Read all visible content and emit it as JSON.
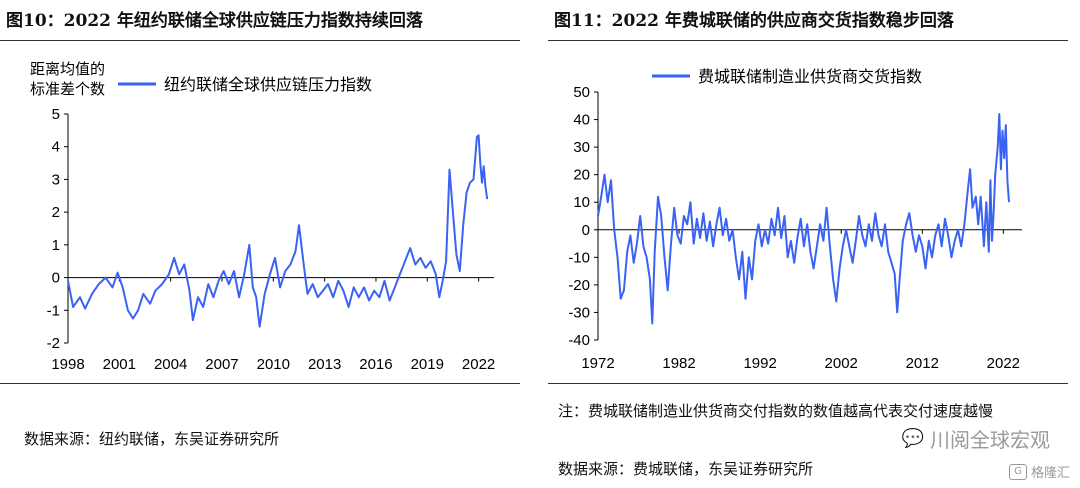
{
  "left": {
    "title": "图10：2022 年纽约联储全球供应链压力指数持续回落",
    "source": "数据来源：纽约联储，东吴证券研究所",
    "chart_data": {
      "type": "line",
      "ylabel": "距离均值的\n标准差个数",
      "legend": "纽约联储全球供应链压力指数",
      "ylim": [
        -2,
        5
      ],
      "yticks": [
        -2,
        -1,
        0,
        1,
        2,
        3,
        4,
        5
      ],
      "xlim": [
        1998,
        2022.9
      ],
      "xticks": [
        1998,
        2001,
        2004,
        2007,
        2010,
        2013,
        2016,
        2019,
        2022
      ],
      "series": [
        {
          "name": "纽约联储全球供应链压力指数",
          "color": "#3b63f3",
          "points": [
            [
              1998,
              -0.1
            ],
            [
              1998.3,
              -0.9
            ],
            [
              1998.7,
              -0.6
            ],
            [
              1999,
              -0.95
            ],
            [
              1999.4,
              -0.5
            ],
            [
              1999.8,
              -0.2
            ],
            [
              2000.2,
              0
            ],
            [
              2000.6,
              -0.3
            ],
            [
              2000.9,
              0.15
            ],
            [
              2001.2,
              -0.3
            ],
            [
              2001.5,
              -1.0
            ],
            [
              2001.8,
              -1.25
            ],
            [
              2002.1,
              -1.0
            ],
            [
              2002.4,
              -0.5
            ],
            [
              2002.8,
              -0.8
            ],
            [
              2003.1,
              -0.4
            ],
            [
              2003.5,
              -0.2
            ],
            [
              2003.9,
              0.1
            ],
            [
              2004.2,
              0.6
            ],
            [
              2004.5,
              0.1
            ],
            [
              2004.8,
              0.4
            ],
            [
              2005.1,
              -0.4
            ],
            [
              2005.3,
              -1.3
            ],
            [
              2005.6,
              -0.6
            ],
            [
              2005.9,
              -0.9
            ],
            [
              2006.2,
              -0.2
            ],
            [
              2006.5,
              -0.6
            ],
            [
              2006.8,
              -0.1
            ],
            [
              2007.1,
              0.2
            ],
            [
              2007.4,
              -0.2
            ],
            [
              2007.7,
              0.2
            ],
            [
              2008.0,
              -0.6
            ],
            [
              2008.3,
              0.1
            ],
            [
              2008.6,
              1.0
            ],
            [
              2008.8,
              -0.3
            ],
            [
              2009.0,
              -0.6
            ],
            [
              2009.2,
              -1.5
            ],
            [
              2009.5,
              -0.5
            ],
            [
              2009.8,
              0.1
            ],
            [
              2010.1,
              0.6
            ],
            [
              2010.4,
              -0.3
            ],
            [
              2010.7,
              0.2
            ],
            [
              2011.0,
              0.4
            ],
            [
              2011.3,
              0.8
            ],
            [
              2011.5,
              1.6
            ],
            [
              2011.8,
              0.3
            ],
            [
              2012.0,
              -0.5
            ],
            [
              2012.3,
              -0.2
            ],
            [
              2012.6,
              -0.6
            ],
            [
              2012.9,
              -0.4
            ],
            [
              2013.2,
              -0.2
            ],
            [
              2013.5,
              -0.6
            ],
            [
              2013.8,
              -0.1
            ],
            [
              2014.1,
              -0.4
            ],
            [
              2014.4,
              -0.9
            ],
            [
              2014.7,
              -0.3
            ],
            [
              2015.0,
              -0.6
            ],
            [
              2015.3,
              -0.3
            ],
            [
              2015.6,
              -0.7
            ],
            [
              2015.9,
              -0.4
            ],
            [
              2016.2,
              -0.6
            ],
            [
              2016.5,
              -0.1
            ],
            [
              2016.8,
              -0.7
            ],
            [
              2017.1,
              -0.3
            ],
            [
              2017.4,
              0.1
            ],
            [
              2017.7,
              0.5
            ],
            [
              2018.0,
              0.9
            ],
            [
              2018.3,
              0.4
            ],
            [
              2018.6,
              0.6
            ],
            [
              2018.9,
              0.3
            ],
            [
              2019.2,
              0.5
            ],
            [
              2019.5,
              0.1
            ],
            [
              2019.7,
              -0.6
            ],
            [
              2019.9,
              -0.1
            ],
            [
              2020.1,
              0.5
            ],
            [
              2020.3,
              3.3
            ],
            [
              2020.5,
              2.0
            ],
            [
              2020.7,
              0.7
            ],
            [
              2020.9,
              0.2
            ],
            [
              2021.1,
              1.6
            ],
            [
              2021.3,
              2.6
            ],
            [
              2021.5,
              2.9
            ],
            [
              2021.7,
              3.0
            ],
            [
              2021.9,
              4.3
            ],
            [
              2022.0,
              4.35
            ],
            [
              2022.1,
              3.5
            ],
            [
              2022.2,
              2.9
            ],
            [
              2022.3,
              3.4
            ],
            [
              2022.4,
              2.8
            ],
            [
              2022.5,
              2.4
            ]
          ]
        }
      ]
    }
  },
  "right": {
    "title": "图11：2022 年费城联储的供应商交货指数稳步回落",
    "note": "注：费城联储制造业供货商交付指数的数值越高代表交付速度越慢",
    "source": "数据来源：费城联储，东吴证券研究所",
    "chart_data": {
      "type": "line",
      "legend": "费城联储制造业供货商交货指数",
      "ylim": [
        -40,
        50
      ],
      "yticks": [
        -40,
        -30,
        -20,
        -10,
        0,
        10,
        20,
        30,
        40,
        50
      ],
      "xlim": [
        1972,
        2024.3
      ],
      "xticks": [
        1972,
        1982,
        1992,
        2002,
        2012,
        2022
      ],
      "series": [
        {
          "name": "费城联储制造业供货商交货指数",
          "color": "#3b63f3",
          "points": [
            [
              1972,
              5
            ],
            [
              1972.4,
              12
            ],
            [
              1972.8,
              20
            ],
            [
              1973.2,
              10
            ],
            [
              1973.6,
              18
            ],
            [
              1974.0,
              0
            ],
            [
              1974.4,
              -10
            ],
            [
              1974.8,
              -25
            ],
            [
              1975.2,
              -22
            ],
            [
              1975.6,
              -8
            ],
            [
              1976.0,
              -2
            ],
            [
              1976.4,
              -12
            ],
            [
              1976.8,
              -5
            ],
            [
              1977.2,
              5
            ],
            [
              1977.6,
              -6
            ],
            [
              1978.0,
              -10
            ],
            [
              1978.4,
              -18
            ],
            [
              1978.7,
              -34
            ],
            [
              1979.0,
              -8
            ],
            [
              1979.4,
              12
            ],
            [
              1979.8,
              5
            ],
            [
              1980.2,
              -10
            ],
            [
              1980.6,
              -22
            ],
            [
              1981.0,
              -5
            ],
            [
              1981.4,
              8
            ],
            [
              1981.8,
              -2
            ],
            [
              1982.2,
              -5
            ],
            [
              1982.6,
              5
            ],
            [
              1983.0,
              2
            ],
            [
              1983.4,
              10
            ],
            [
              1983.8,
              -5
            ],
            [
              1984.2,
              4
            ],
            [
              1984.6,
              -3
            ],
            [
              1985.0,
              6
            ],
            [
              1985.4,
              -4
            ],
            [
              1985.8,
              3
            ],
            [
              1986.2,
              -6
            ],
            [
              1986.6,
              2
            ],
            [
              1987.0,
              8
            ],
            [
              1987.4,
              -2
            ],
            [
              1987.8,
              4
            ],
            [
              1988.2,
              -4
            ],
            [
              1988.6,
              0
            ],
            [
              1989.0,
              -10
            ],
            [
              1989.4,
              -18
            ],
            [
              1989.8,
              -8
            ],
            [
              1990.2,
              -25
            ],
            [
              1990.6,
              -10
            ],
            [
              1991.0,
              -18
            ],
            [
              1991.4,
              -4
            ],
            [
              1991.8,
              2
            ],
            [
              1992.2,
              -6
            ],
            [
              1992.6,
              0
            ],
            [
              1993.0,
              -5
            ],
            [
              1993.4,
              4
            ],
            [
              1993.8,
              -2
            ],
            [
              1994.2,
              8
            ],
            [
              1994.6,
              -3
            ],
            [
              1995.0,
              5
            ],
            [
              1995.4,
              -10
            ],
            [
              1995.8,
              -4
            ],
            [
              1996.2,
              -12
            ],
            [
              1996.6,
              -3
            ],
            [
              1997.0,
              4
            ],
            [
              1997.4,
              -6
            ],
            [
              1997.8,
              2
            ],
            [
              1998.2,
              -8
            ],
            [
              1998.6,
              -14
            ],
            [
              1999.0,
              -6
            ],
            [
              1999.4,
              2
            ],
            [
              1999.8,
              -4
            ],
            [
              2000.2,
              8
            ],
            [
              2000.6,
              -6
            ],
            [
              2001.0,
              -18
            ],
            [
              2001.4,
              -26
            ],
            [
              2001.8,
              -14
            ],
            [
              2002.2,
              -6
            ],
            [
              2002.6,
              0
            ],
            [
              2003.0,
              -6
            ],
            [
              2003.4,
              -12
            ],
            [
              2003.8,
              -4
            ],
            [
              2004.2,
              5
            ],
            [
              2004.6,
              -2
            ],
            [
              2005.0,
              -6
            ],
            [
              2005.4,
              2
            ],
            [
              2005.8,
              -4
            ],
            [
              2006.2,
              6
            ],
            [
              2006.6,
              -2
            ],
            [
              2007.0,
              -6
            ],
            [
              2007.4,
              2
            ],
            [
              2007.8,
              -8
            ],
            [
              2008.2,
              -12
            ],
            [
              2008.6,
              -16
            ],
            [
              2008.9,
              -30
            ],
            [
              2009.2,
              -18
            ],
            [
              2009.6,
              -4
            ],
            [
              2010.0,
              2
            ],
            [
              2010.4,
              6
            ],
            [
              2010.8,
              -2
            ],
            [
              2011.2,
              -8
            ],
            [
              2011.6,
              -2
            ],
            [
              2012.0,
              -6
            ],
            [
              2012.4,
              -14
            ],
            [
              2012.8,
              -4
            ],
            [
              2013.2,
              -10
            ],
            [
              2013.6,
              -2
            ],
            [
              2014.0,
              2
            ],
            [
              2014.4,
              -6
            ],
            [
              2014.8,
              4
            ],
            [
              2015.2,
              -2
            ],
            [
              2015.6,
              -10
            ],
            [
              2016.0,
              -4
            ],
            [
              2016.4,
              0
            ],
            [
              2016.8,
              -6
            ],
            [
              2017.2,
              2
            ],
            [
              2017.6,
              14
            ],
            [
              2017.9,
              22
            ],
            [
              2018.2,
              8
            ],
            [
              2018.6,
              12
            ],
            [
              2018.9,
              2
            ],
            [
              2019.2,
              12
            ],
            [
              2019.6,
              -6
            ],
            [
              2019.9,
              10
            ],
            [
              2020.2,
              -8
            ],
            [
              2020.4,
              18
            ],
            [
              2020.6,
              -4
            ],
            [
              2020.8,
              6
            ],
            [
              2021.0,
              20
            ],
            [
              2021.3,
              30
            ],
            [
              2021.5,
              42
            ],
            [
              2021.7,
              22
            ],
            [
              2021.9,
              36
            ],
            [
              2022.1,
              26
            ],
            [
              2022.3,
              38
            ],
            [
              2022.5,
              18
            ],
            [
              2022.7,
              10
            ]
          ]
        }
      ]
    }
  },
  "watermark": {
    "main": "川阅全球宏观",
    "secondary": "格隆汇",
    "badge": "G"
  }
}
